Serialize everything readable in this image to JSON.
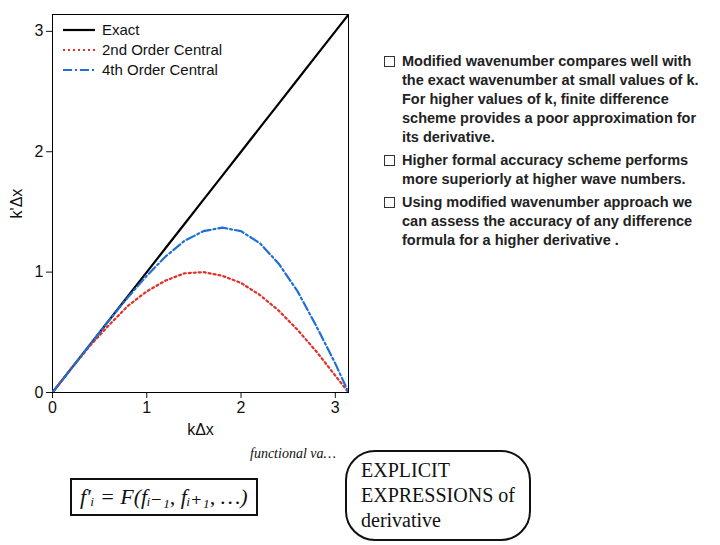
{
  "chart_data": {
    "type": "line",
    "x_label": "kΔx",
    "y_label": "k'Δx",
    "x": [
      0,
      0.2,
      0.4,
      0.6,
      0.8,
      1.0,
      1.2,
      1.4,
      1.6,
      1.8,
      2.0,
      2.2,
      2.4,
      2.6,
      2.8,
      3.0,
      3.14
    ],
    "series": [
      {
        "name": "Exact",
        "color": "#000000",
        "line_style": "solid",
        "values": [
          0,
          0.2,
          0.4,
          0.6,
          0.8,
          1.0,
          1.2,
          1.4,
          1.6,
          1.8,
          2.0,
          2.2,
          2.4,
          2.6,
          2.8,
          3.0,
          3.14
        ]
      },
      {
        "name": "2nd Order Central",
        "color": "#e0302a",
        "line_style": "dotted",
        "values": [
          0,
          0.2,
          0.39,
          0.56,
          0.72,
          0.84,
          0.93,
          0.99,
          1.0,
          0.97,
          0.91,
          0.81,
          0.68,
          0.52,
          0.34,
          0.14,
          0
        ]
      },
      {
        "name": "4th Order Central",
        "color": "#1f6fd6",
        "line_style": "dashdot",
        "values": [
          0,
          0.2,
          0.4,
          0.6,
          0.79,
          0.97,
          1.13,
          1.26,
          1.34,
          1.37,
          1.34,
          1.24,
          1.07,
          0.84,
          0.55,
          0.24,
          0
        ]
      }
    ],
    "xlim": [
      0,
      3.14
    ],
    "ylim": [
      0,
      3.14
    ],
    "xticks": [
      0,
      1,
      2,
      3
    ],
    "yticks": [
      0,
      1,
      2,
      3
    ],
    "grid": false,
    "legend": "top-left",
    "annotations": {
      "bullets": [
        "Modified wavenumber compares well with the exact wavenumber at small values of k. For higher values of k, finite difference scheme provides a poor approximation for its derivative.",
        "Higher formal accuracy scheme performs more superiorly at higher wave numbers.",
        "Using modified wavenumber approach we can assess the accuracy of any difference formula for a higher derivative ."
      ],
      "handwriting": [
        "functional va…",
        "f′ᵢ = F(fᵢ₋₁, fᵢ₊₁, …)",
        "EXPLICIT",
        "EXPRESSIONS of",
        "derivative"
      ]
    }
  }
}
